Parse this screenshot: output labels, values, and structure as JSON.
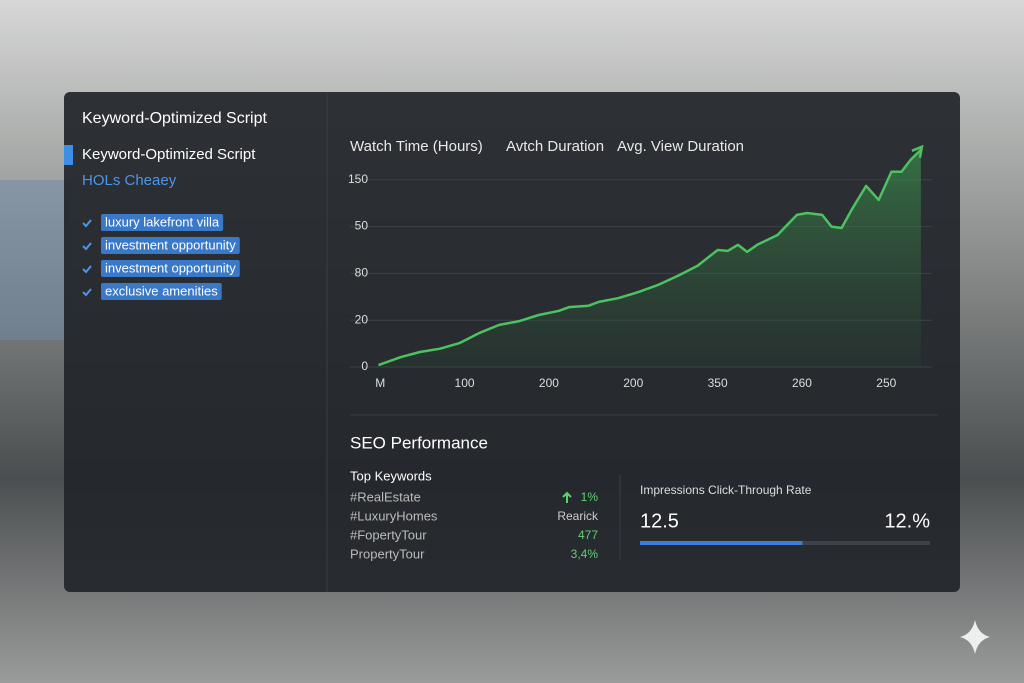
{
  "sidebar": {
    "title": "Keyword-Optimized Script",
    "heading": "Keyword-Optimized Script",
    "subheading": "HOLs Cheaey",
    "tags": [
      "luxury lakefront villa",
      "investment opportunity",
      "investment opportunity",
      "exclusive amenities"
    ]
  },
  "chart_data": {
    "type": "line",
    "legend": [
      "Watch Time (Hours)",
      "Avtch Duration",
      "Avg. View Duration"
    ],
    "color": "#4cc261",
    "xlim": [
      -0.05,
      6.5
    ],
    "ylim": [
      0,
      4.7
    ],
    "xticks": [
      {
        "value": 0,
        "label": "M"
      },
      {
        "value": 1,
        "label": "100"
      },
      {
        "value": 2,
        "label": "200"
      },
      {
        "value": 3,
        "label": "200"
      },
      {
        "value": 4,
        "label": "350"
      },
      {
        "value": 5,
        "label": "260"
      },
      {
        "value": 6,
        "label": "250"
      }
    ],
    "yticks": [
      {
        "value": 0,
        "label": "0"
      },
      {
        "value": 1,
        "label": "20"
      },
      {
        "value": 2,
        "label": "80"
      },
      {
        "value": 3,
        "label": "50"
      },
      {
        "value": 4,
        "label": "150"
      }
    ],
    "grid": true,
    "x": [
      -0.02,
      0.24,
      0.47,
      0.71,
      0.94,
      1.18,
      1.41,
      1.65,
      1.88,
      2.12,
      2.24,
      2.47,
      2.59,
      2.82,
      3.06,
      3.29,
      3.53,
      3.76,
      4.0,
      4.12,
      4.24,
      4.35,
      4.47,
      4.71,
      4.94,
      5.06,
      5.24,
      5.35,
      5.47,
      5.59,
      5.76,
      5.91,
      6.06,
      6.18,
      6.29,
      6.41
    ],
    "values": [
      0.04,
      0.21,
      0.32,
      0.39,
      0.51,
      0.73,
      0.9,
      0.98,
      1.11,
      1.2,
      1.28,
      1.31,
      1.39,
      1.47,
      1.6,
      1.75,
      1.95,
      2.16,
      2.5,
      2.48,
      2.61,
      2.46,
      2.61,
      2.82,
      3.25,
      3.29,
      3.25,
      3.0,
      2.97,
      3.36,
      3.87,
      3.57,
      4.17,
      4.17,
      4.43,
      4.64
    ]
  },
  "seo": {
    "title": "SEO Performance",
    "keywords_title": "Top Keywords",
    "keywords": [
      [
        "#RealEstate",
        "1%"
      ],
      [
        "#LuxuryHomes",
        "Rearick"
      ],
      [
        "#FopertyTour",
        "477"
      ],
      [
        "PropertyTour",
        "3,4%"
      ]
    ],
    "metric_title": "Impressions Click-Through Rate",
    "metric_left": "12.5",
    "metric_right": "12.%",
    "progress": 56
  }
}
